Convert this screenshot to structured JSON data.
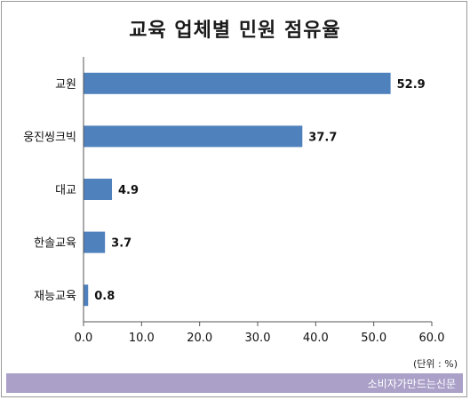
{
  "chart_data": {
    "type": "bar",
    "orientation": "horizontal",
    "title": "교육 업체별 민원 점유율",
    "categories": [
      "교원",
      "웅진씽크빅",
      "대교",
      "한솔교육",
      "재능교육"
    ],
    "values": [
      52.9,
      37.7,
      4.9,
      3.7,
      0.8
    ],
    "value_labels": [
      "52.9",
      "37.7",
      "4.9",
      "3.7",
      "0.8"
    ],
    "xlim": [
      0,
      60
    ],
    "xticks": [
      "0.0",
      "10.0",
      "20.0",
      "30.0",
      "40.0",
      "50.0",
      "60.0"
    ],
    "xtick_values": [
      0,
      10,
      20,
      30,
      40,
      50,
      60
    ],
    "unit_note": "(단위 : %)",
    "grid": false,
    "bar_color": "#4f81bd"
  },
  "footer": {
    "source": "소비자가만드는신문",
    "color": "#aaa0c8"
  }
}
